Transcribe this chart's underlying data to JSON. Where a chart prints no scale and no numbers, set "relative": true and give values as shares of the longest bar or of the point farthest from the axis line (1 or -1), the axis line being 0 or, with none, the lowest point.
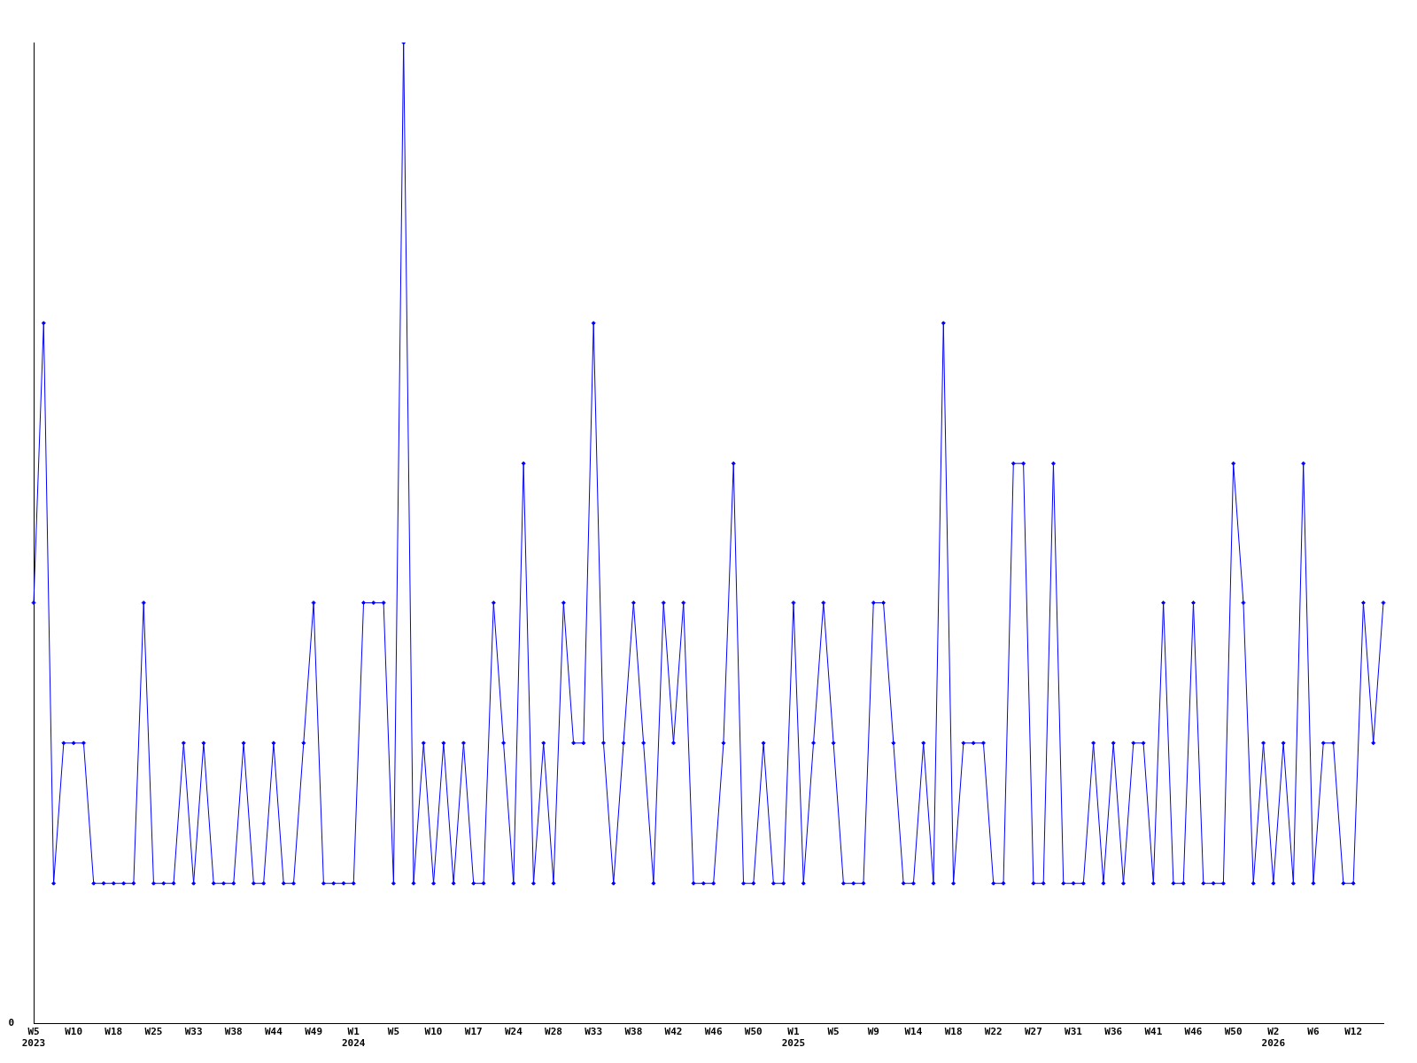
{
  "chart_data": {
    "type": "line",
    "relative": true,
    "color": "#0000ff",
    "marker": "diamond",
    "grid": false,
    "legend": false,
    "annotations": [
      "0"
    ],
    "categories": [
      "W5 2023",
      null,
      null,
      null,
      "W10",
      null,
      null,
      null,
      "W18",
      null,
      null,
      null,
      "W25",
      null,
      null,
      null,
      "W33",
      null,
      null,
      null,
      "W38",
      null,
      null,
      null,
      "W44",
      null,
      null,
      null,
      "W49",
      null,
      null,
      null,
      "W1 2024",
      null,
      null,
      null,
      "W5",
      null,
      null,
      null,
      "W10",
      null,
      null,
      null,
      "W17",
      null,
      null,
      null,
      "W24",
      null,
      null,
      null,
      "W28",
      null,
      null,
      null,
      "W33",
      null,
      null,
      null,
      "W38",
      null,
      null,
      null,
      "W42",
      null,
      null,
      null,
      "W46",
      null,
      null,
      null,
      "W50",
      null,
      null,
      null,
      "W1 2025",
      null,
      null,
      null,
      "W5",
      null,
      null,
      null,
      "W9",
      null,
      null,
      null,
      "W14",
      null,
      null,
      null,
      "W18",
      null,
      null,
      null,
      "W22",
      null,
      null,
      null,
      "W27",
      null,
      null,
      null,
      "W31",
      null,
      null,
      null,
      "W36",
      null,
      null,
      null,
      "W41",
      null,
      null,
      null,
      "W46",
      null,
      null,
      null,
      "W50",
      null,
      null,
      null,
      "W2 2026",
      null,
      null,
      null,
      "W6",
      null,
      null,
      null,
      "W12",
      null,
      null,
      null
    ],
    "values": [
      0.429,
      0.714,
      0.143,
      0.286,
      0.286,
      0.286,
      0.143,
      0.143,
      0.143,
      0.143,
      0.143,
      0.429,
      0.143,
      0.143,
      0.143,
      0.286,
      0.143,
      0.286,
      0.143,
      0.143,
      0.143,
      0.286,
      0.143,
      0.143,
      0.286,
      0.143,
      0.143,
      0.286,
      0.429,
      0.143,
      0.143,
      0.143,
      0.143,
      0.429,
      0.429,
      0.429,
      0.143,
      1,
      0.143,
      0.286,
      0.143,
      0.286,
      0.143,
      0.286,
      0.143,
      0.143,
      0.429,
      0.286,
      0.143,
      0.571,
      0.143,
      0.286,
      0.143,
      0.429,
      0.286,
      0.286,
      0.714,
      0.286,
      0.143,
      0.286,
      0.429,
      0.286,
      0.143,
      0.429,
      0.286,
      0.429,
      0.143,
      0.143,
      0.143,
      0.286,
      0.571,
      0.143,
      0.143,
      0.286,
      0.143,
      0.143,
      0.429,
      0.143,
      0.286,
      0.429,
      0.286,
      0.143,
      0.143,
      0.143,
      0.429,
      0.429,
      0.286,
      0.143,
      0.143,
      0.286,
      0.143,
      0.714,
      0.143,
      0.286,
      0.286,
      0.286,
      0.143,
      0.143,
      0.571,
      0.571,
      0.143,
      0.143,
      0.571,
      0.143,
      0.143,
      0.143,
      0.286,
      0.143,
      0.286,
      0.143,
      0.286,
      0.286,
      0.143,
      0.429,
      0.143,
      0.143,
      0.429,
      0.143,
      0.143,
      0.143,
      0.571,
      0.429,
      0.143,
      0.286,
      0.143,
      0.286,
      0.143,
      0.571,
      0.143,
      0.286,
      0.286,
      0.143,
      0.143,
      0.429,
      0.286,
      0.429
    ]
  }
}
